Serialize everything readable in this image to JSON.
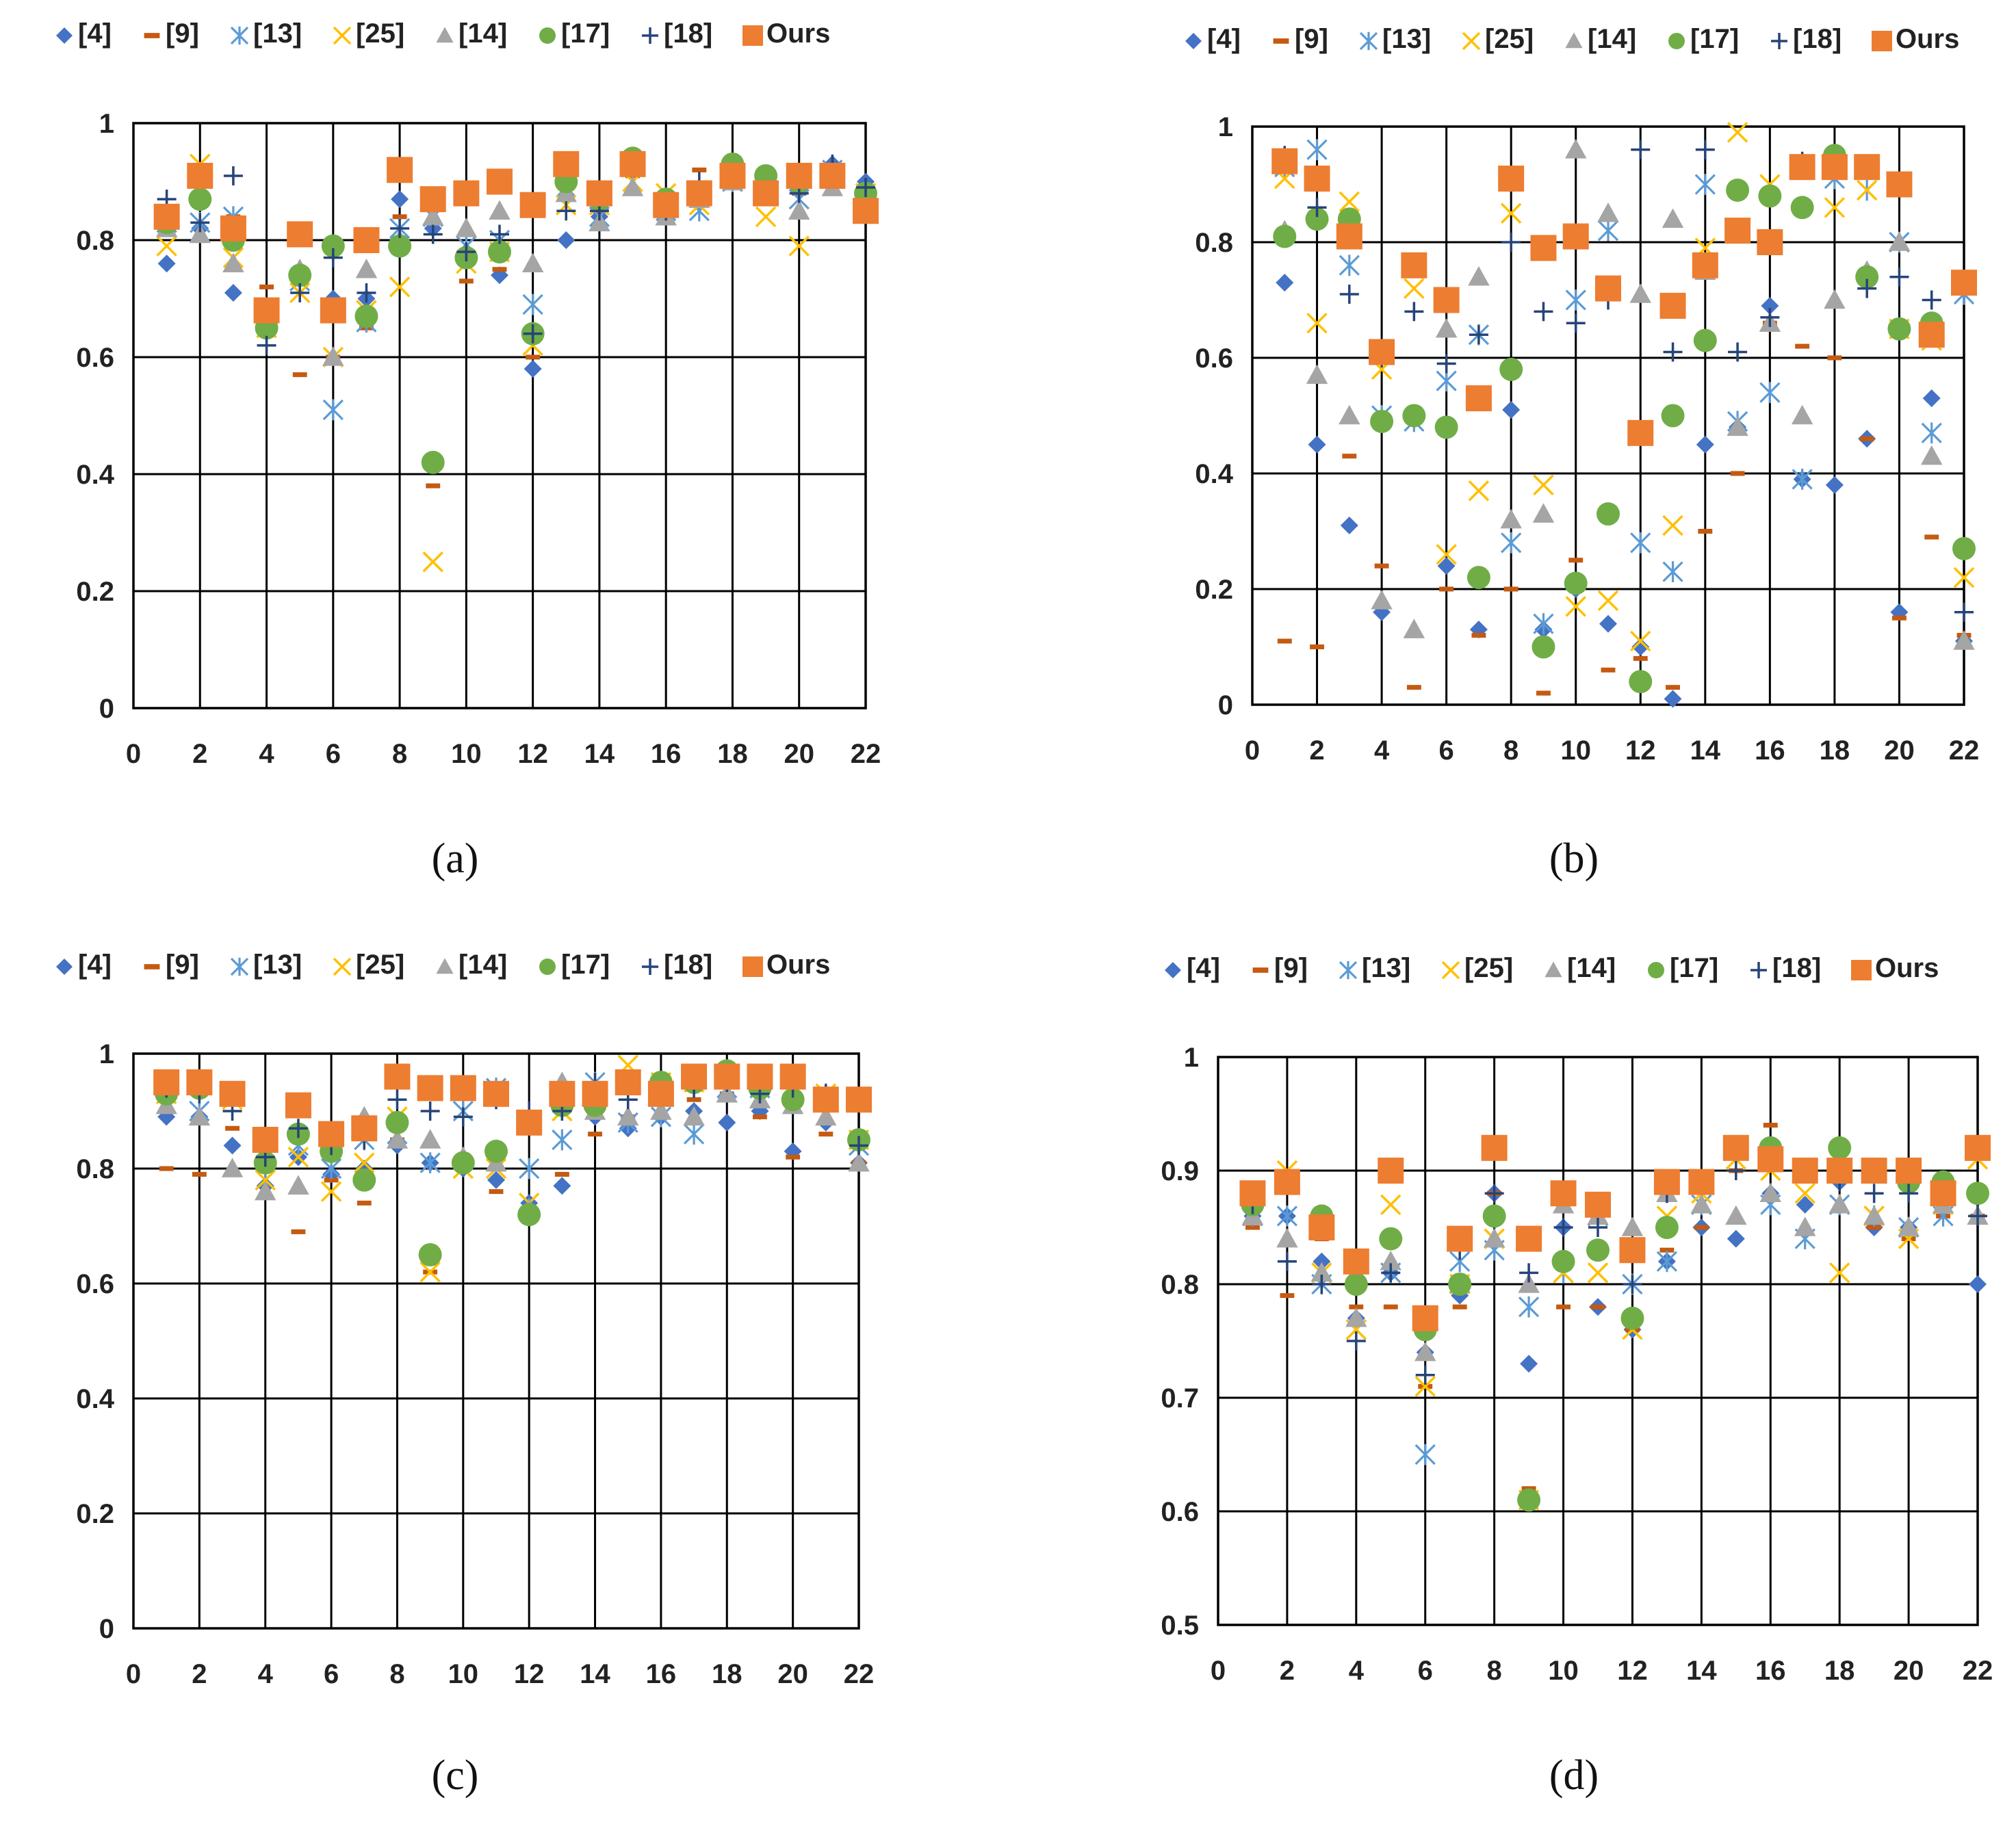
{
  "figure": {
    "series_names": [
      "[4]",
      "[9]",
      "[13]",
      "[25]",
      "[14]",
      "[17]",
      "[18]",
      "Ours"
    ],
    "series_styles": [
      {
        "name": "[4]",
        "marker": "diamond-icon",
        "color": "#4472C4"
      },
      {
        "name": "[9]",
        "marker": "dash-icon",
        "color": "#C55A11"
      },
      {
        "name": "[13]",
        "marker": "asterisk-x-icon",
        "color": "#5B9BD5"
      },
      {
        "name": "[25]",
        "marker": "x-cross-icon",
        "color": "#FFC000"
      },
      {
        "name": "[14]",
        "marker": "triangle-icon",
        "color": "#A5A5A5"
      },
      {
        "name": "[17]",
        "marker": "circle-icon",
        "color": "#70AD47"
      },
      {
        "name": "[18]",
        "marker": "plus-icon",
        "color": "#264478"
      },
      {
        "name": "Ours",
        "marker": "square-icon",
        "color": "#ED7D31"
      }
    ]
  },
  "chart_data": [
    {
      "type": "scatter",
      "caption": "(a)",
      "title": "",
      "xlabel": "",
      "ylabel": "",
      "xlim": [
        0,
        22
      ],
      "ylim": [
        0,
        1
      ],
      "xticks": [
        "0",
        "2",
        "4",
        "6",
        "8",
        "10",
        "12",
        "14",
        "16",
        "18",
        "20",
        "22"
      ],
      "yticks": [
        "0",
        "0.2",
        "0.4",
        "0.6",
        "0.8",
        "1"
      ],
      "grid": true,
      "legend": "top",
      "x": [
        1,
        2,
        3,
        4,
        5,
        6,
        7,
        8,
        9,
        10,
        11,
        12,
        13,
        14,
        15,
        16,
        17,
        18,
        19,
        20,
        21,
        22
      ],
      "series": [
        {
          "name": "[4]",
          "values": [
            0.76,
            0.82,
            0.71,
            0.65,
            0.74,
            0.7,
            0.7,
            0.87,
            0.82,
            0.78,
            0.74,
            0.58,
            0.8,
            0.84,
            0.92,
            0.86,
            0.88,
            0.92,
            0.91,
            0.9,
            0.93,
            0.9
          ]
        },
        {
          "name": "[9]",
          "values": [
            0.82,
            0.86,
            0.84,
            0.72,
            0.57,
            0.6,
            0.65,
            0.84,
            0.38,
            0.73,
            0.75,
            0.6,
            0.87,
            0.85,
            0.91,
            0.86,
            0.92,
            0.92,
            0.9,
            0.88,
            0.9,
            0.88
          ]
        },
        {
          "name": "[13]",
          "values": [
            0.83,
            0.83,
            0.84,
            0.66,
            0.73,
            0.51,
            0.66,
            0.82,
            0.84,
            0.79,
            0.8,
            0.69,
            0.89,
            0.84,
            0.9,
            0.85,
            0.85,
            0.9,
            0.9,
            0.87,
            0.92,
            0.88
          ]
        },
        {
          "name": "[25]",
          "values": [
            0.79,
            0.93,
            0.77,
            0.65,
            0.71,
            0.6,
            0.68,
            0.72,
            0.25,
            0.76,
            0.78,
            0.62,
            0.86,
            0.86,
            0.9,
            0.88,
            0.86,
            0.92,
            0.84,
            0.79,
            0.91,
            0.88
          ]
        },
        {
          "name": "[14]",
          "values": [
            0.82,
            0.81,
            0.76,
            0.66,
            0.75,
            0.6,
            0.75,
            0.8,
            0.84,
            0.82,
            0.85,
            0.76,
            0.88,
            0.83,
            0.89,
            0.84,
            0.87,
            0.9,
            0.9,
            0.85,
            0.89,
            0.88
          ]
        },
        {
          "name": "[17]",
          "values": [
            0.83,
            0.87,
            0.8,
            0.65,
            0.74,
            0.79,
            0.67,
            0.79,
            0.42,
            0.77,
            0.78,
            0.64,
            0.9,
            0.87,
            0.94,
            0.87,
            0.88,
            0.93,
            0.91,
            0.9,
            0.91,
            0.88
          ]
        },
        {
          "name": "[18]",
          "values": [
            0.87,
            0.83,
            0.91,
            0.62,
            0.71,
            0.77,
            0.71,
            0.82,
            0.81,
            0.78,
            0.81,
            0.64,
            0.85,
            0.85,
            0.93,
            0.85,
            0.9,
            0.91,
            0.88,
            0.88,
            0.93,
            0.89
          ]
        },
        {
          "name": "Ours",
          "values": [
            0.84,
            0.91,
            0.82,
            0.68,
            0.81,
            0.68,
            0.8,
            0.92,
            0.87,
            0.88,
            0.9,
            0.86,
            0.93,
            0.88,
            0.93,
            0.86,
            0.88,
            0.91,
            0.88,
            0.91,
            0.91,
            0.85
          ]
        }
      ]
    },
    {
      "type": "scatter",
      "caption": "(b)",
      "title": "",
      "xlabel": "",
      "ylabel": "",
      "xlim": [
        0,
        22
      ],
      "ylim": [
        0,
        1
      ],
      "xticks": [
        "0",
        "2",
        "4",
        "6",
        "8",
        "10",
        "12",
        "14",
        "16",
        "18",
        "20",
        "22"
      ],
      "yticks": [
        "0",
        "0.2",
        "0.4",
        "0.6",
        "0.8",
        "1"
      ],
      "grid": true,
      "legend": "top",
      "x": [
        1,
        2,
        3,
        4,
        5,
        6,
        7,
        8,
        9,
        10,
        11,
        12,
        13,
        14,
        15,
        16,
        17,
        18,
        19,
        20,
        21,
        22
      ],
      "series": [
        {
          "name": "[4]",
          "values": [
            0.73,
            0.45,
            0.31,
            0.16,
            0.5,
            0.24,
            0.13,
            0.51,
            0.13,
            0.2,
            0.14,
            0.1,
            0.01,
            0.45,
            0.48,
            0.69,
            0.39,
            0.38,
            0.46,
            0.16,
            0.53,
            0.11
          ]
        },
        {
          "name": "[9]",
          "values": [
            0.11,
            0.1,
            0.43,
            0.24,
            0.03,
            0.2,
            0.12,
            0.2,
            0.02,
            0.25,
            0.06,
            0.08,
            0.03,
            0.3,
            0.4,
            0.66,
            0.62,
            0.6,
            0.46,
            0.15,
            0.29,
            0.12
          ]
        },
        {
          "name": "[13]",
          "values": [
            0.93,
            0.96,
            0.76,
            0.5,
            0.49,
            0.56,
            0.64,
            0.28,
            0.14,
            0.7,
            0.82,
            0.28,
            0.23,
            0.9,
            0.49,
            0.54,
            0.39,
            0.91,
            0.89,
            0.8,
            0.47,
            0.71
          ]
        },
        {
          "name": "[25]",
          "values": [
            0.91,
            0.66,
            0.87,
            0.58,
            0.72,
            0.26,
            0.37,
            0.85,
            0.38,
            0.17,
            0.18,
            0.11,
            0.31,
            0.79,
            0.99,
            0.9,
            0.93,
            0.86,
            0.89,
            0.65,
            0.63,
            0.22
          ]
        },
        {
          "name": "[14]",
          "values": [
            0.82,
            0.57,
            0.5,
            0.18,
            0.13,
            0.65,
            0.74,
            0.32,
            0.33,
            0.96,
            0.85,
            0.71,
            0.84,
            0.75,
            0.48,
            0.66,
            0.5,
            0.7,
            0.75,
            0.8,
            0.43,
            0.11
          ]
        },
        {
          "name": "[17]",
          "values": [
            0.81,
            0.84,
            0.84,
            0.49,
            0.5,
            0.48,
            0.22,
            0.58,
            0.1,
            0.21,
            0.33,
            0.04,
            0.5,
            0.63,
            0.89,
            0.88,
            0.86,
            0.95,
            0.74,
            0.65,
            0.66,
            0.27
          ]
        },
        {
          "name": "[18]",
          "values": [
            0.95,
            0.86,
            0.71,
            0.6,
            0.68,
            0.59,
            0.64,
            0.8,
            0.68,
            0.66,
            0.7,
            0.96,
            0.61,
            0.96,
            0.61,
            0.67,
            0.94,
            0.93,
            0.72,
            0.74,
            0.7,
            0.16
          ]
        },
        {
          "name": "Ours",
          "values": [
            0.94,
            0.91,
            0.81,
            0.61,
            0.76,
            0.7,
            0.53,
            0.91,
            0.79,
            0.81,
            0.72,
            0.47,
            0.69,
            0.76,
            0.82,
            0.8,
            0.93,
            0.93,
            0.93,
            0.9,
            0.64,
            0.73
          ]
        }
      ]
    },
    {
      "type": "scatter",
      "caption": "(c)",
      "title": "",
      "xlabel": "",
      "ylabel": "",
      "xlim": [
        0,
        22
      ],
      "ylim": [
        0,
        1
      ],
      "xticks": [
        "0",
        "2",
        "4",
        "6",
        "8",
        "10",
        "12",
        "14",
        "16",
        "18",
        "20",
        "22"
      ],
      "yticks": [
        "0",
        "0.2",
        "0.4",
        "0.6",
        "0.8",
        "1"
      ],
      "grid": true,
      "legend": "top",
      "x": [
        1,
        2,
        3,
        4,
        5,
        6,
        7,
        8,
        9,
        10,
        11,
        12,
        13,
        14,
        15,
        16,
        17,
        18,
        19,
        20,
        21,
        22
      ],
      "series": [
        {
          "name": "[4]",
          "values": [
            0.89,
            0.89,
            0.84,
            0.77,
            0.82,
            0.79,
            0.8,
            0.84,
            0.81,
            0.8,
            0.78,
            0.74,
            0.77,
            0.89,
            0.87,
            0.89,
            0.9,
            0.88,
            0.9,
            0.83,
            0.88,
            0.81
          ]
        },
        {
          "name": "[9]",
          "values": [
            0.8,
            0.79,
            0.87,
            0.8,
            0.69,
            0.78,
            0.74,
            0.85,
            0.62,
            0.8,
            0.76,
            0.71,
            0.79,
            0.86,
            0.89,
            0.93,
            0.92,
            0.93,
            0.89,
            0.82,
            0.86,
            0.81
          ]
        },
        {
          "name": "[13]",
          "values": [
            0.93,
            0.9,
            0.93,
            0.78,
            0.84,
            0.8,
            0.85,
            0.86,
            0.81,
            0.9,
            0.94,
            0.8,
            0.85,
            0.95,
            0.88,
            0.89,
            0.86,
            0.94,
            0.94,
            0.94,
            0.93,
            0.84
          ]
        },
        {
          "name": "[25]",
          "values": [
            0.93,
            0.95,
            0.92,
            0.78,
            0.82,
            0.76,
            0.81,
            0.89,
            0.62,
            0.8,
            0.8,
            0.74,
            0.9,
            0.93,
            0.98,
            0.95,
            0.95,
            0.96,
            0.95,
            0.94,
            0.93,
            0.85
          ]
        },
        {
          "name": "[14]",
          "values": [
            0.91,
            0.89,
            0.8,
            0.76,
            0.77,
            0.84,
            0.89,
            0.85,
            0.85,
            0.82,
            0.81,
            0.73,
            0.95,
            0.9,
            0.89,
            0.9,
            0.89,
            0.93,
            0.92,
            0.91,
            0.89,
            0.81
          ]
        },
        {
          "name": "[17]",
          "values": [
            0.93,
            0.94,
            0.93,
            0.81,
            0.86,
            0.83,
            0.78,
            0.88,
            0.65,
            0.81,
            0.83,
            0.72,
            0.91,
            0.91,
            0.95,
            0.95,
            0.95,
            0.97,
            0.94,
            0.92,
            0.92,
            0.85
          ]
        },
        {
          "name": "[18]",
          "values": [
            0.94,
            0.93,
            0.9,
            0.82,
            0.87,
            0.84,
            0.85,
            0.92,
            0.9,
            0.89,
            0.92,
            0.9,
            0.9,
            0.95,
            0.92,
            0.93,
            0.94,
            0.95,
            0.93,
            0.94,
            0.93,
            0.84
          ]
        },
        {
          "name": "Ours",
          "values": [
            0.95,
            0.95,
            0.93,
            0.85,
            0.91,
            0.86,
            0.87,
            0.96,
            0.94,
            0.94,
            0.93,
            0.88,
            0.93,
            0.93,
            0.95,
            0.93,
            0.96,
            0.96,
            0.96,
            0.96,
            0.92,
            0.92
          ]
        }
      ]
    },
    {
      "type": "scatter",
      "caption": "(d)",
      "title": "",
      "xlabel": "",
      "ylabel": "",
      "xlim": [
        0,
        22
      ],
      "ylim": [
        0.5,
        1
      ],
      "xticks": [
        "0",
        "2",
        "4",
        "6",
        "8",
        "10",
        "12",
        "14",
        "16",
        "18",
        "20",
        "22"
      ],
      "yticks": [
        "0.5",
        "0.6",
        "0.7",
        "0.8",
        "0.9",
        "1"
      ],
      "grid": true,
      "legend": "top",
      "x": [
        1,
        2,
        3,
        4,
        5,
        6,
        7,
        8,
        9,
        10,
        11,
        12,
        13,
        14,
        15,
        16,
        17,
        18,
        19,
        20,
        21,
        22
      ],
      "series": [
        {
          "name": "[4]",
          "values": [
            0.86,
            0.86,
            0.82,
            0.77,
            0.81,
            0.74,
            0.79,
            0.88,
            0.73,
            0.85,
            0.78,
            0.76,
            0.82,
            0.85,
            0.84,
            0.88,
            0.87,
            0.89,
            0.85,
            0.85,
            0.88,
            0.8
          ]
        },
        {
          "name": "[9]",
          "values": [
            0.85,
            0.79,
            0.84,
            0.78,
            0.78,
            0.71,
            0.78,
            0.88,
            0.62,
            0.78,
            0.78,
            0.76,
            0.83,
            0.85,
            0.9,
            0.94,
            0.9,
            0.9,
            0.85,
            0.84,
            0.86,
            0.86
          ]
        },
        {
          "name": "[13]",
          "values": [
            0.86,
            0.86,
            0.8,
            0.76,
            0.81,
            0.65,
            0.82,
            0.83,
            0.78,
            0.81,
            0.86,
            0.8,
            0.82,
            0.87,
            0.92,
            0.87,
            0.84,
            0.87,
            0.86,
            0.85,
            0.86,
            0.92
          ]
        },
        {
          "name": "[25]",
          "values": [
            0.88,
            0.9,
            0.81,
            0.76,
            0.87,
            0.71,
            0.8,
            0.84,
            0.61,
            0.81,
            0.81,
            0.76,
            0.86,
            0.88,
            0.91,
            0.9,
            0.88,
            0.81,
            0.86,
            0.84,
            0.87,
            0.91
          ]
        },
        {
          "name": "[14]",
          "values": [
            0.86,
            0.84,
            0.81,
            0.77,
            0.82,
            0.74,
            0.8,
            0.84,
            0.8,
            0.87,
            0.86,
            0.85,
            0.88,
            0.87,
            0.86,
            0.88,
            0.85,
            0.87,
            0.86,
            0.85,
            0.87,
            0.86
          ]
        },
        {
          "name": "[17]",
          "values": [
            0.87,
            0.89,
            0.86,
            0.8,
            0.84,
            0.76,
            0.8,
            0.86,
            0.61,
            0.82,
            0.83,
            0.77,
            0.85,
            0.89,
            0.92,
            0.92,
            0.9,
            0.92,
            0.9,
            0.89,
            0.89,
            0.88
          ]
        },
        {
          "name": "[18]",
          "values": [
            0.87,
            0.82,
            0.8,
            0.75,
            0.81,
            0.72,
            0.83,
            0.88,
            0.81,
            0.85,
            0.85,
            0.8,
            0.88,
            0.89,
            0.9,
            0.91,
            0.9,
            0.89,
            0.88,
            0.88,
            0.88,
            0.86
          ]
        },
        {
          "name": "Ours",
          "values": [
            0.88,
            0.89,
            0.85,
            0.82,
            0.9,
            0.77,
            0.84,
            0.92,
            0.84,
            0.88,
            0.87,
            0.83,
            0.89,
            0.89,
            0.92,
            0.91,
            0.9,
            0.9,
            0.9,
            0.9,
            0.88,
            0.92
          ]
        }
      ]
    }
  ]
}
